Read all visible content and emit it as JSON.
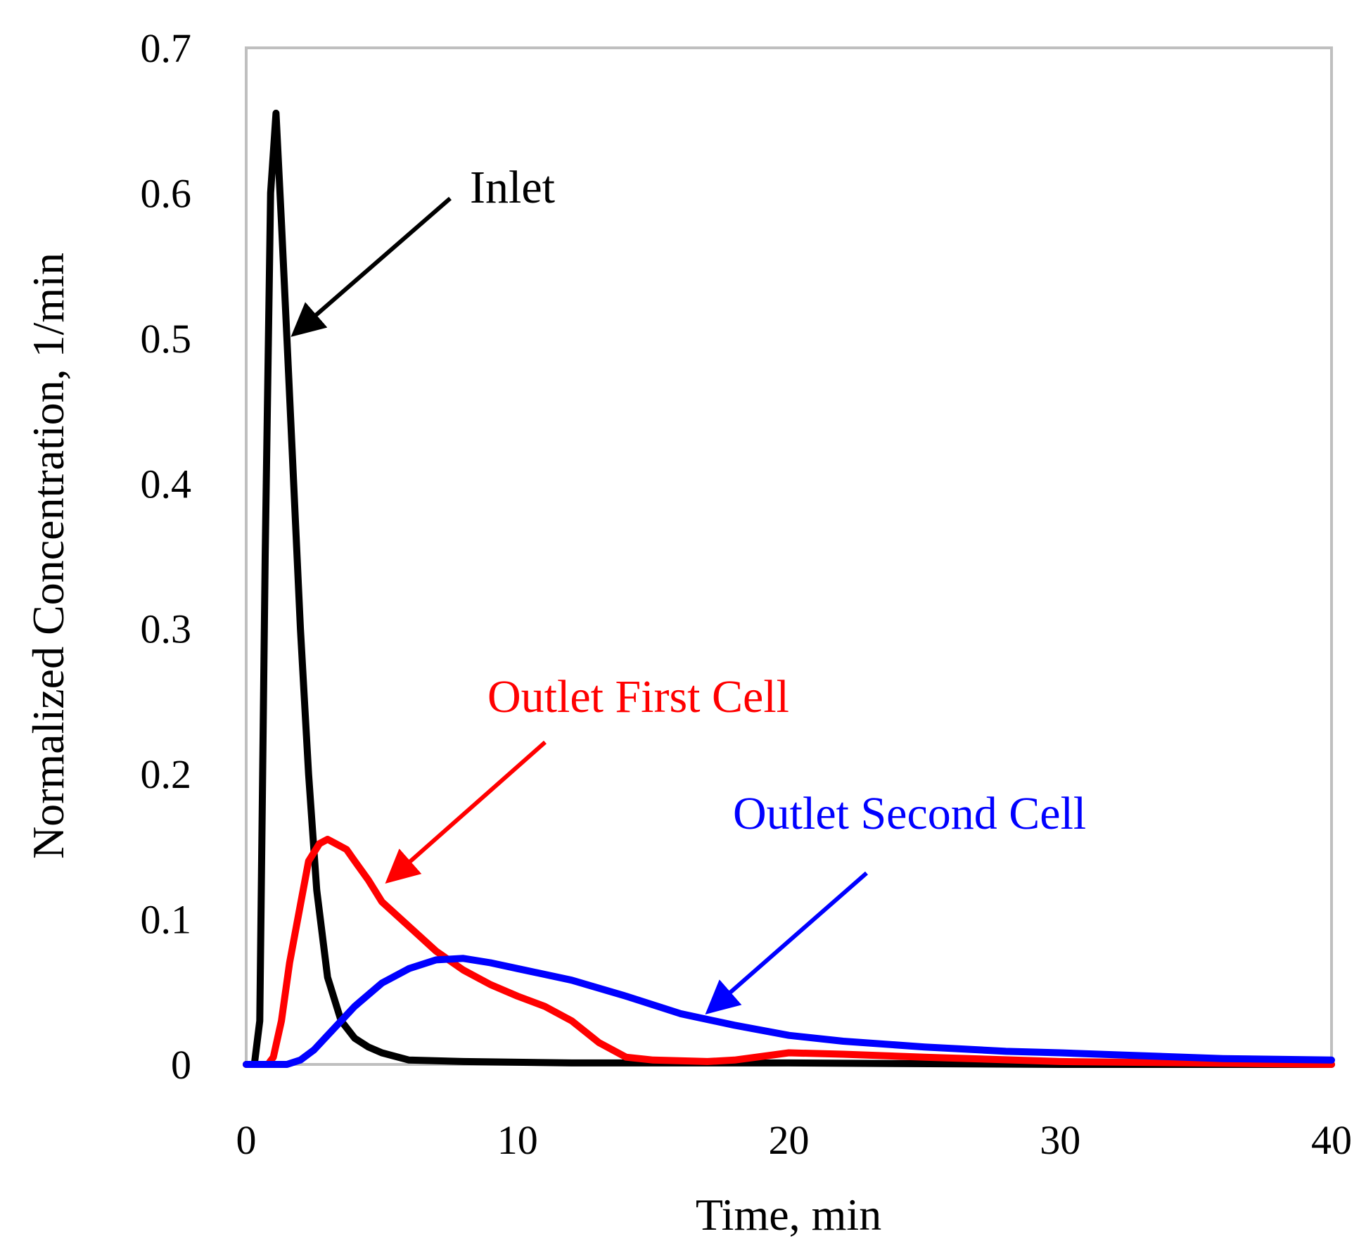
{
  "chart_data": {
    "type": "line",
    "title": "",
    "xlabel": "Time, min",
    "ylabel": "Normalized Concentration, 1/min",
    "xlim": [
      0,
      40
    ],
    "ylim": [
      0,
      0.7
    ],
    "x_ticks": [
      "0",
      "10",
      "20",
      "30",
      "40"
    ],
    "y_ticks": [
      "0",
      "0.1",
      "0.2",
      "0.3",
      "0.4",
      "0.5",
      "0.6",
      "0.7"
    ],
    "grid": false,
    "series": [
      {
        "name": "Inlet",
        "color": "#000000",
        "x": [
          0,
          0.3,
          0.5,
          0.7,
          0.9,
          1.1,
          1.3,
          1.5,
          1.7,
          2.0,
          2.3,
          2.6,
          3.0,
          3.5,
          4.0,
          4.5,
          5.0,
          6.0,
          8.0,
          12.0,
          20.0,
          30.0,
          40.0
        ],
        "values": [
          0,
          0,
          0.03,
          0.35,
          0.6,
          0.655,
          0.58,
          0.5,
          0.42,
          0.3,
          0.2,
          0.12,
          0.06,
          0.03,
          0.018,
          0.012,
          0.008,
          0.003,
          0.002,
          0.001,
          0.001,
          0.0,
          0.0
        ]
      },
      {
        "name": "Outlet First Cell",
        "color": "#ff0000",
        "x": [
          0,
          0.8,
          1.0,
          1.3,
          1.6,
          2.0,
          2.3,
          2.7,
          3.0,
          3.3,
          3.7,
          4.0,
          4.5,
          5.0,
          6.0,
          7.0,
          8.0,
          9.0,
          10.0,
          11.0,
          12.0,
          13.0,
          14.0,
          15.0,
          17.0,
          18.0,
          20.0,
          22.0,
          25.0,
          30.0,
          35.0,
          40.0
        ],
        "values": [
          0,
          0,
          0.005,
          0.03,
          0.07,
          0.11,
          0.14,
          0.152,
          0.155,
          0.152,
          0.148,
          0.14,
          0.127,
          0.112,
          0.095,
          0.078,
          0.065,
          0.055,
          0.047,
          0.04,
          0.03,
          0.015,
          0.005,
          0.003,
          0.002,
          0.003,
          0.008,
          0.007,
          0.005,
          0.002,
          0.001,
          0.0
        ]
      },
      {
        "name": "Outlet Second Cell",
        "color": "#0000ff",
        "x": [
          0,
          1.5,
          2.0,
          2.5,
          3.0,
          3.5,
          4.0,
          5.0,
          6.0,
          7.0,
          8.0,
          9.0,
          10.0,
          12.0,
          14.0,
          16.0,
          18.0,
          20.0,
          22.0,
          25.0,
          28.0,
          30.0,
          33.0,
          36.0,
          40.0
        ],
        "values": [
          0,
          0,
          0.003,
          0.01,
          0.02,
          0.03,
          0.04,
          0.056,
          0.066,
          0.072,
          0.073,
          0.07,
          0.066,
          0.058,
          0.047,
          0.035,
          0.027,
          0.02,
          0.016,
          0.012,
          0.009,
          0.008,
          0.006,
          0.004,
          0.003
        ]
      }
    ],
    "annotations": [
      {
        "id": "inlet",
        "text": "Inlet",
        "color": "#000000"
      },
      {
        "id": "first",
        "text": "Outlet First Cell",
        "color": "#ff0000"
      },
      {
        "id": "second",
        "text": "Outlet Second Cell",
        "color": "#0000ff"
      }
    ]
  }
}
